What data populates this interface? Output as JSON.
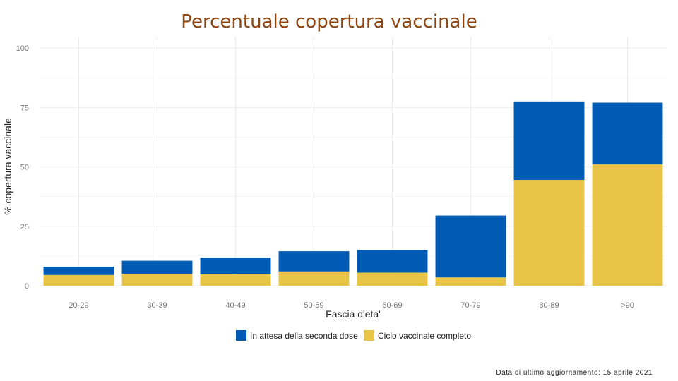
{
  "chart_data": {
    "type": "bar",
    "stacked": true,
    "title": "Percentuale copertura vaccinale",
    "xlabel": "Fascia d'eta'",
    "ylabel": "% copertura vaccinale",
    "ylim": [
      0,
      100
    ],
    "yticks": [
      0,
      25,
      50,
      75,
      100
    ],
    "categories": [
      "20-29",
      "30-39",
      "40-49",
      "50-59",
      "60-69",
      "70-79",
      "80-89",
      ">90"
    ],
    "series": [
      {
        "name": "Ciclo vaccinale completo",
        "color": "#E8C547",
        "values": [
          4.5,
          5.0,
          4.8,
          6.0,
          5.5,
          3.5,
          44.5,
          51.0
        ]
      },
      {
        "name": "In attesa della seconda dose",
        "color": "#005BB5",
        "values": [
          3.5,
          5.5,
          7.0,
          8.5,
          9.5,
          26.0,
          33.0,
          26.0
        ]
      }
    ],
    "legend_order": [
      "In attesa della seconda dose",
      "Ciclo vaccinale completo"
    ],
    "grid": true,
    "legend_position": "bottom"
  },
  "footnote": "Data di ultimo aggiornamento: 15 aprile 2021"
}
